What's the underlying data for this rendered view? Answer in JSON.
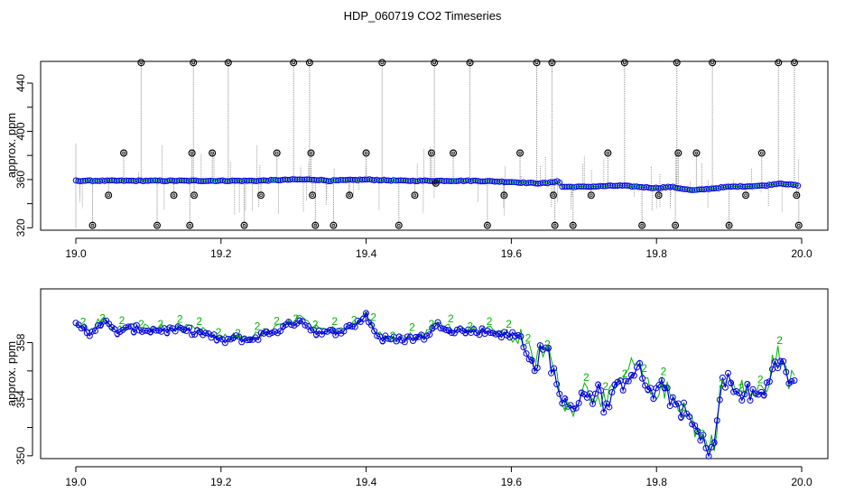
{
  "title": "HDP_060719  CO2 Timeseries",
  "colors": {
    "frame": "#000000",
    "spike": "#888888",
    "marker_outlier": "#000000",
    "series_1": "#00c8c8",
    "series_2": "#00b400",
    "series_3": "#0000e0"
  },
  "chart_data": [
    {
      "type": "scatter",
      "title": "HDP_060719  CO2 Timeseries",
      "xlabel": "",
      "ylabel": "approx. ppm",
      "xlim": [
        19.0,
        20.0
      ],
      "ylim": [
        318,
        458
      ],
      "x_ticks": [
        19.0,
        19.2,
        19.4,
        19.6,
        19.8,
        20.0
      ],
      "x_tick_labels": [
        "19.0",
        "19.2",
        "19.4",
        "19.6",
        "19.8",
        "20.0"
      ],
      "y_ticks": [
        320,
        360,
        400,
        440
      ],
      "y_tick_labels": [
        "320",
        "360",
        "400",
        "440"
      ],
      "grid": false,
      "legend": "none",
      "series": [
        {
          "kind": "baseline",
          "x": [
            19.0,
            19.05,
            19.1,
            19.15,
            19.2,
            19.25,
            19.3,
            19.33,
            19.35,
            19.4,
            19.45,
            19.5,
            19.55,
            19.6,
            19.63,
            19.65,
            19.665,
            19.67,
            19.7,
            19.75,
            19.8,
            19.82,
            19.85,
            19.9,
            19.95,
            19.97,
            19.995
          ],
          "y": [
            359,
            359,
            359,
            359,
            359,
            359,
            360,
            360,
            359,
            360,
            359,
            359,
            359,
            358,
            357,
            357,
            359,
            354,
            354,
            355,
            353,
            354,
            351,
            354,
            355,
            357,
            355
          ]
        },
        {
          "kind": "outliers",
          "x": [
            19.023,
            19.045,
            19.066,
            19.09,
            19.112,
            19.135,
            19.157,
            19.16,
            19.162,
            19.163,
            19.188,
            19.21,
            19.232,
            19.255,
            19.277,
            19.3,
            19.322,
            19.324,
            19.326,
            19.33,
            19.355,
            19.377,
            19.4,
            19.422,
            19.445,
            19.467,
            19.49,
            19.494,
            19.496,
            19.52,
            19.543,
            19.567,
            19.59,
            19.612,
            19.635,
            19.656,
            19.658,
            19.66,
            19.685,
            19.71,
            19.733,
            19.756,
            19.78,
            19.803,
            19.826,
            19.828,
            19.83,
            19.855,
            19.877,
            19.9,
            19.923,
            19.945,
            19.968,
            19.99,
            19.993,
            19.996
          ],
          "y": [
            322,
            347,
            382,
            457,
            322,
            347,
            322,
            382,
            457,
            347,
            382,
            457,
            322,
            347,
            382,
            457,
            457,
            382,
            347,
            322,
            322,
            347,
            382,
            457,
            322,
            347,
            382,
            457,
            357,
            382,
            457,
            322,
            347,
            382,
            457,
            457,
            347,
            322,
            322,
            347,
            382,
            457,
            322,
            347,
            322,
            457,
            382,
            382,
            457,
            322,
            347,
            382,
            457,
            457,
            347,
            322
          ]
        }
      ]
    },
    {
      "type": "scatter",
      "title": "",
      "xlabel": "",
      "ylabel": "approx. ppm",
      "xlim": [
        19.0,
        20.0
      ],
      "ylim": [
        349.8,
        361.8
      ],
      "x_ticks": [
        19.0,
        19.2,
        19.4,
        19.6,
        19.8,
        20.0
      ],
      "x_tick_labels": [
        "19.0",
        "19.2",
        "19.4",
        "19.6",
        "19.8",
        "20.0"
      ],
      "y_ticks": [
        350,
        354,
        358
      ],
      "y_tick_labels": [
        "350",
        "354",
        "358"
      ],
      "grid": false,
      "legend": "none",
      "series": [
        {
          "kind": "co2",
          "x": [
            19.0,
            19.01,
            19.02,
            19.03,
            19.04,
            19.05,
            19.06,
            19.08,
            19.1,
            19.12,
            19.14,
            19.16,
            19.18,
            19.2,
            19.22,
            19.24,
            19.26,
            19.28,
            19.3,
            19.31,
            19.32,
            19.34,
            19.36,
            19.38,
            19.39,
            19.4,
            19.41,
            19.42,
            19.44,
            19.46,
            19.48,
            19.5,
            19.52,
            19.54,
            19.56,
            19.58,
            19.6,
            19.61,
            19.62,
            19.63,
            19.64,
            19.65,
            19.66,
            19.67,
            19.68,
            19.69,
            19.7,
            19.71,
            19.72,
            19.73,
            19.74,
            19.75,
            19.76,
            19.77,
            19.78,
            19.79,
            19.8,
            19.81,
            19.82,
            19.83,
            19.84,
            19.85,
            19.86,
            19.87,
            19.88,
            19.89,
            19.9,
            19.91,
            19.92,
            19.93,
            19.94,
            19.95,
            19.96,
            19.97,
            19.98,
            19.99
          ],
          "y": [
            359.2,
            359.0,
            358.6,
            359.3,
            359.5,
            358.9,
            358.8,
            359.0,
            358.9,
            358.9,
            358.9,
            358.8,
            358.6,
            358.1,
            358.3,
            358.2,
            358.6,
            358.9,
            359.4,
            359.7,
            359.1,
            358.6,
            358.8,
            359.1,
            359.5,
            360.0,
            358.9,
            358.3,
            358.2,
            358.3,
            358.4,
            359.3,
            358.9,
            358.8,
            358.8,
            358.7,
            358.4,
            358.3,
            358.0,
            356.0,
            357.2,
            357.5,
            355.5,
            354.2,
            352.8,
            354.0,
            354.6,
            354.2,
            354.5,
            353.4,
            354.2,
            354.9,
            355.8,
            356.2,
            355.8,
            354.3,
            354.6,
            354.7,
            354.0,
            353.7,
            352.9,
            352.2,
            351.2,
            350.5,
            351.0,
            355.0,
            355.4,
            354.2,
            354.6,
            354.3,
            354.3,
            354.4,
            356.4,
            357.1,
            355.2,
            355.2
          ]
        }
      ]
    }
  ]
}
